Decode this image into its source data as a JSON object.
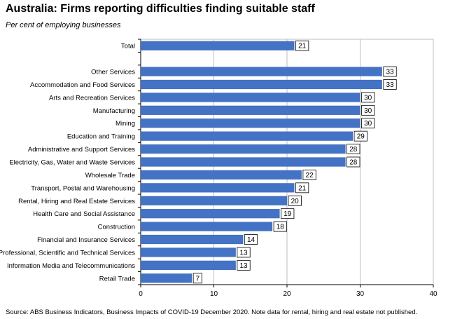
{
  "title": "Australia: Firms reporting difficulties finding suitable staff",
  "subtitle": "Per cent of employing businesses",
  "source": "Source: ABS Business Indicators, Business Impacts of COVID-19 December 2020.  Note data for rental, hiring and real estate not published.",
  "chart_data": {
    "type": "bar",
    "orientation": "horizontal",
    "categories": [
      "Total",
      "",
      "Other Services",
      "Accommodation and Food Services",
      "Arts and Recreation Services",
      "Manufacturing",
      "Mining",
      "Education and Training",
      "Administrative and Support Services",
      "Electricity, Gas, Water and Waste Services",
      "Wholesale Trade",
      "Transport, Postal and Warehousing",
      "Rental, Hiring and Real Estate Services",
      "Health Care and Social Assistance",
      "Construction",
      "Financial and Insurance Services",
      "Professional, Scientific and Technical Services",
      "Information Media and Telecommunications",
      "Retail Trade"
    ],
    "values": [
      21,
      null,
      33,
      33,
      30,
      30,
      30,
      29,
      28,
      28,
      22,
      21,
      20,
      19,
      18,
      14,
      13,
      13,
      7
    ],
    "data_labels": [
      "21",
      "",
      "33",
      "33",
      "30",
      "30",
      "30",
      "29",
      "28",
      "28",
      "22",
      "21",
      "20",
      "19",
      "18",
      "14",
      "13",
      "13",
      "7"
    ],
    "xlim": [
      0,
      40
    ],
    "xticks": [
      0,
      10,
      20,
      30,
      40
    ],
    "xtick_labels": [
      "0",
      "10",
      "20",
      "30",
      "40"
    ],
    "bar_color": "#4472C4",
    "grid": "vertical",
    "legend": "none"
  }
}
